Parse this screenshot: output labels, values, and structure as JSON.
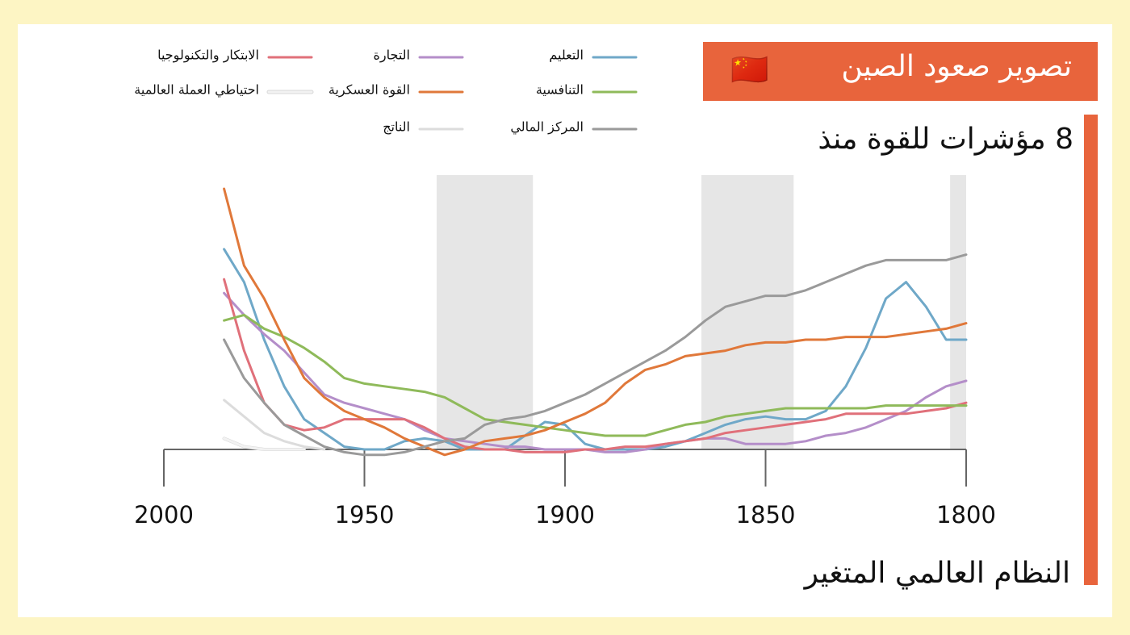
{
  "chart_data": {
    "type": "line",
    "title": "تصوير صعود الصين",
    "flag": "🇨🇳",
    "subtitle": "8 مؤشرات للقوة منذ",
    "caption": "النظام العالمي المتغير",
    "x": [
      1985,
      1980,
      1975,
      1970,
      1965,
      1960,
      1955,
      1950,
      1945,
      1940,
      1935,
      1930,
      1925,
      1920,
      1915,
      1910,
      1905,
      1900,
      1895,
      1890,
      1885,
      1880,
      1875,
      1870,
      1865,
      1860,
      1855,
      1850,
      1845,
      1840,
      1835,
      1830,
      1825,
      1820,
      1815,
      1810,
      1805,
      1800
    ],
    "xlim": [
      2000,
      1800
    ],
    "xticks": [
      2000,
      1950,
      1900,
      1850,
      1800
    ],
    "ylim": [
      0,
      1
    ],
    "shaded_periods": [
      [
        1932,
        1908
      ],
      [
        1866,
        1843
      ],
      [
        1804,
        1800
      ]
    ],
    "series": [
      {
        "name": "التعليم",
        "color": "#6fa8c8",
        "values": [
          0.73,
          0.61,
          0.4,
          0.23,
          0.11,
          0.06,
          0.01,
          0,
          0,
          0.03,
          0.04,
          0.03,
          0,
          0,
          0,
          0.05,
          0.1,
          0.09,
          0.02,
          0,
          0,
          0,
          0.01,
          0.03,
          0.06,
          0.09,
          0.11,
          0.12,
          0.11,
          0.11,
          0.14,
          0.23,
          0.37,
          0.55,
          0.61,
          0.52,
          0.4,
          0.4
        ]
      },
      {
        "name": "التجارة",
        "color": "#b48ec9",
        "values": [
          0.57,
          0.49,
          0.42,
          0.36,
          0.28,
          0.2,
          0.17,
          0.15,
          0.13,
          0.11,
          0.07,
          0.04,
          0.03,
          0.02,
          0.01,
          0.01,
          0,
          0,
          0,
          -0.01,
          -0.01,
          0,
          0.02,
          0.03,
          0.04,
          0.04,
          0.02,
          0.02,
          0.02,
          0.03,
          0.05,
          0.06,
          0.08,
          0.11,
          0.14,
          0.19,
          0.23,
          0.25
        ]
      },
      {
        "name": "الابتكار والتكنولوجيا",
        "color": "#e0707a",
        "values": [
          0.62,
          0.36,
          0.17,
          0.09,
          0.07,
          0.08,
          0.11,
          0.11,
          0.11,
          0.11,
          0.08,
          0.04,
          0.01,
          0,
          0,
          -0.01,
          -0.01,
          -0.01,
          0,
          0,
          0.01,
          0.01,
          0.02,
          0.03,
          0.04,
          0.06,
          0.07,
          0.08,
          0.09,
          0.1,
          0.11,
          0.13,
          0.13,
          0.13,
          0.13,
          0.14,
          0.15,
          0.17
        ]
      },
      {
        "name": "التنافسية",
        "color": "#8fba5a",
        "values": [
          0.47,
          0.49,
          0.44,
          0.41,
          0.37,
          0.32,
          0.26,
          0.24,
          0.23,
          0.22,
          0.21,
          0.19,
          0.15,
          0.11,
          0.1,
          0.09,
          0.08,
          0.07,
          0.06,
          0.05,
          0.05,
          0.05,
          0.07,
          0.09,
          0.1,
          0.12,
          0.13,
          0.14,
          0.15,
          0.15,
          0.15,
          0.15,
          0.15,
          0.16,
          0.16,
          0.16,
          0.16,
          0.16
        ]
      },
      {
        "name": "القوة العسكرية",
        "color": "#e0783a",
        "values": [
          0.95,
          0.67,
          0.55,
          0.4,
          0.26,
          0.19,
          0.14,
          0.11,
          0.08,
          0.04,
          0.01,
          -0.02,
          0,
          0.03,
          0.04,
          0.05,
          0.07,
          0.1,
          0.13,
          0.17,
          0.24,
          0.29,
          0.31,
          0.34,
          0.35,
          0.36,
          0.38,
          0.39,
          0.39,
          0.4,
          0.4,
          0.41,
          0.41,
          0.41,
          0.42,
          0.43,
          0.44,
          0.46
        ]
      },
      {
        "name": "احتياطي العملة العالمية",
        "color": "#f2f2f2",
        "values": [
          0.04,
          0.01,
          0,
          0,
          0,
          null,
          null,
          null,
          null,
          null,
          null,
          null,
          null,
          null,
          null,
          null,
          null,
          null,
          null,
          null,
          null,
          null,
          null,
          null,
          null,
          null,
          null,
          null,
          null,
          null,
          null,
          null,
          null,
          null,
          null,
          null,
          null,
          null
        ]
      },
      {
        "name": "المركز المالي",
        "color": "#9a9a9a",
        "values": [
          0.4,
          0.26,
          0.17,
          0.09,
          0.05,
          0.01,
          -0.01,
          -0.02,
          -0.02,
          -0.01,
          0.01,
          0.03,
          0.04,
          0.09,
          0.11,
          0.12,
          0.14,
          0.17,
          0.2,
          0.24,
          0.28,
          0.32,
          0.36,
          0.41,
          0.47,
          0.52,
          0.54,
          0.56,
          0.56,
          0.58,
          0.61,
          0.64,
          0.67,
          0.69,
          0.69,
          0.69,
          0.69,
          0.71
        ]
      },
      {
        "name": "الناتج",
        "color": "#dcdcdc",
        "values": [
          0.18,
          0.12,
          0.06,
          0.03,
          0.01,
          0,
          null,
          null,
          null,
          null,
          null,
          null,
          null,
          null,
          null,
          null,
          null,
          null,
          null,
          null,
          null,
          null,
          null,
          null,
          null,
          null,
          null,
          null,
          null,
          null,
          null,
          null,
          null,
          null,
          null,
          null,
          null,
          null
        ]
      }
    ]
  }
}
